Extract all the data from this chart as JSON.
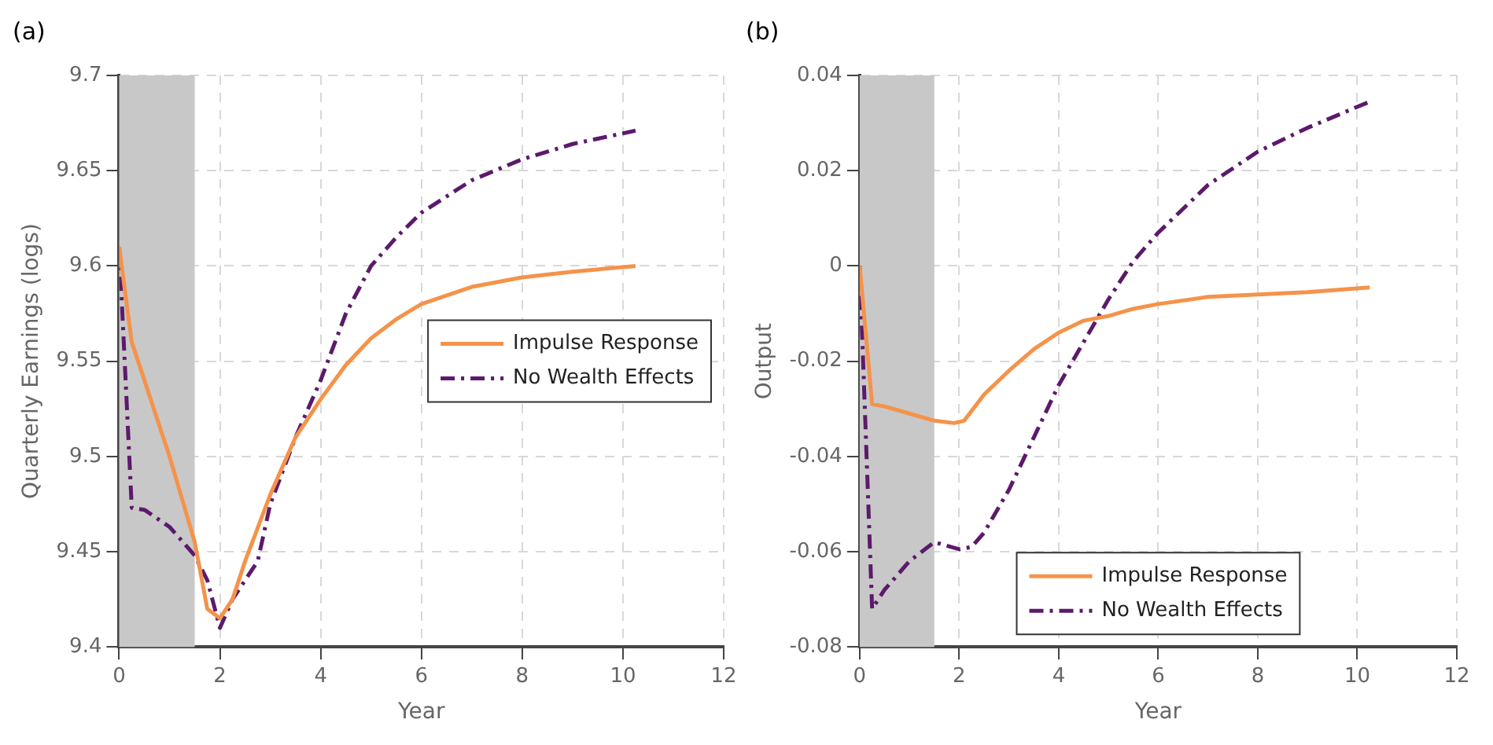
{
  "chart_data": [
    {
      "type": "line",
      "title": "(a)",
      "xlabel": "Year",
      "ylabel": "Quarterly Earnings (logs)",
      "xlim": [
        0,
        12
      ],
      "xticks": [
        0,
        2,
        4,
        6,
        8,
        10,
        12
      ],
      "ylim": [
        9.4,
        9.7
      ],
      "yticks": [
        9.4,
        9.45,
        9.5,
        9.55,
        9.6,
        9.65,
        9.7
      ],
      "grid": true,
      "legend": "right",
      "bands": [
        {
          "axis": "x",
          "from": 0,
          "to": 1.5,
          "color": "#c8c8c8"
        }
      ],
      "series": [
        {
          "name": "Impulse Response",
          "color": "#f4934a",
          "line_style": "solid",
          "x": [
            0,
            0.25,
            0.5,
            1,
            1.5,
            1.75,
            2,
            2.25,
            2.5,
            3,
            3.5,
            4,
            4.5,
            5,
            5.5,
            6,
            7,
            8,
            9,
            10.25
          ],
          "values": [
            9.61,
            9.56,
            9.54,
            9.5,
            9.455,
            9.42,
            9.415,
            9.425,
            9.445,
            9.48,
            9.51,
            9.53,
            9.548,
            9.562,
            9.572,
            9.58,
            9.589,
            9.594,
            9.597,
            9.6
          ]
        },
        {
          "name": "No Wealth Effects",
          "color": "#5c1a6b",
          "line_style": "dashed",
          "x": [
            0,
            0.25,
            0.5,
            1,
            1.5,
            1.75,
            2,
            2.25,
            2.5,
            2.75,
            3,
            3.5,
            4,
            4.5,
            5,
            5.5,
            6,
            7,
            8,
            9,
            10.25
          ],
          "values": [
            9.61,
            9.473,
            9.472,
            9.463,
            9.448,
            9.435,
            9.41,
            9.425,
            9.435,
            9.445,
            9.475,
            9.51,
            9.54,
            9.575,
            9.6,
            9.615,
            9.628,
            9.645,
            9.656,
            9.664,
            9.671
          ]
        }
      ]
    },
    {
      "type": "line",
      "title": "(b)",
      "xlabel": "Year",
      "ylabel": "Output",
      "xlim": [
        0,
        12
      ],
      "xticks": [
        0,
        2,
        4,
        6,
        8,
        10,
        12
      ],
      "ylim": [
        -0.08,
        0.04
      ],
      "yticks": [
        -0.08,
        -0.06,
        -0.04,
        -0.02,
        0,
        0.02,
        0.04
      ],
      "grid": true,
      "legend": "bottom",
      "bands": [
        {
          "axis": "x",
          "from": 0,
          "to": 1.5,
          "color": "#c8c8c8"
        }
      ],
      "series": [
        {
          "name": "Impulse Response",
          "color": "#f4934a",
          "line_style": "solid",
          "x": [
            0,
            0.25,
            0.5,
            1,
            1.5,
            1.9,
            2.1,
            2.5,
            3,
            3.5,
            4,
            4.5,
            5,
            5.5,
            6,
            7,
            8,
            9,
            10.25
          ],
          "values": [
            0,
            -0.029,
            -0.0295,
            -0.031,
            -0.0325,
            -0.033,
            -0.0325,
            -0.027,
            -0.022,
            -0.0175,
            -0.014,
            -0.0115,
            -0.0105,
            -0.009,
            -0.008,
            -0.0065,
            -0.006,
            -0.0055,
            -0.0045
          ]
        },
        {
          "name": "No Wealth Effects",
          "color": "#5c1a6b",
          "line_style": "dashed",
          "x": [
            0,
            0.25,
            0.5,
            1,
            1.5,
            2,
            2.25,
            2.5,
            3,
            3.5,
            4,
            4.5,
            5,
            5.5,
            6,
            7,
            8,
            9,
            10.25
          ],
          "values": [
            0,
            -0.072,
            -0.068,
            -0.062,
            -0.058,
            -0.0595,
            -0.059,
            -0.056,
            -0.047,
            -0.036,
            -0.025,
            -0.016,
            -0.007,
            0.001,
            0.007,
            0.017,
            0.024,
            0.029,
            0.0345
          ]
        }
      ]
    }
  ]
}
